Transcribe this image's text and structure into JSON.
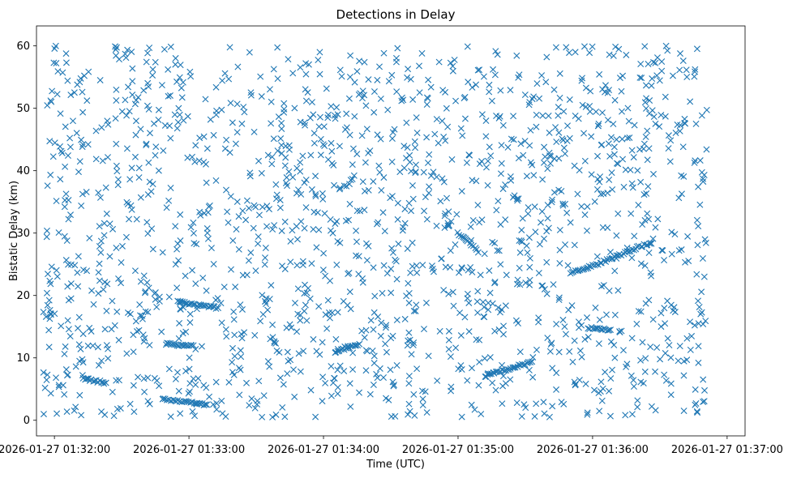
{
  "chart_data": {
    "type": "scatter",
    "title": "Detections in Delay",
    "xlabel": "Time (UTC)",
    "ylabel": "Bistatic Delay (km)",
    "marker": "x",
    "color": "#1f77b4",
    "grid": false,
    "legend": "none",
    "xlim": [
      "2026-01-27 01:31:52",
      "2026-01-27 01:37:08"
    ],
    "ylim": [
      -2.5,
      63.2
    ],
    "xticks": [
      "2026-01-27 01:32:00",
      "2026-01-27 01:33:00",
      "2026-01-27 01:34:00",
      "2026-01-27 01:35:00",
      "2026-01-27 01:36:00",
      "2026-01-27 01:37:00"
    ],
    "yticks": [
      0,
      10,
      20,
      30,
      40,
      50,
      60
    ],
    "observed_time_range": [
      "2026-01-27 01:31:55",
      "2026-01-27 01:36:51"
    ],
    "observed_delay_range": [
      0.5,
      60
    ],
    "tracks": [
      {
        "points": [
          [
            "2026-01-27 01:32:48",
            3.4
          ],
          [
            "2026-01-27 01:32:52",
            3.2
          ],
          [
            "2026-01-27 01:32:56",
            3.0
          ],
          [
            "2026-01-27 01:32:59",
            2.9
          ],
          [
            "2026-01-27 01:33:03",
            2.7
          ],
          [
            "2026-01-27 01:33:06",
            2.6
          ],
          [
            "2026-01-27 01:33:08",
            2.5
          ]
        ]
      },
      {
        "points": [
          [
            "2026-01-27 01:32:55",
            19.0
          ],
          [
            "2026-01-27 01:33:00",
            18.7
          ],
          [
            "2026-01-27 01:33:05",
            18.4
          ],
          [
            "2026-01-27 01:33:10",
            18.2
          ],
          [
            "2026-01-27 01:33:13",
            18.0
          ]
        ]
      },
      {
        "points": [
          [
            "2026-01-27 01:32:50",
            12.3
          ],
          [
            "2026-01-27 01:32:55",
            12.0
          ],
          [
            "2026-01-27 01:33:00",
            11.9
          ],
          [
            "2026-01-27 01:33:02",
            12.0
          ]
        ]
      },
      {
        "points": [
          [
            "2026-01-27 01:32:13",
            6.7
          ],
          [
            "2026-01-27 01:32:18",
            6.3
          ],
          [
            "2026-01-27 01:32:23",
            6.0
          ]
        ]
      },
      {
        "points": [
          [
            "2026-01-27 01:34:05",
            11.0
          ],
          [
            "2026-01-27 01:34:10",
            11.5
          ],
          [
            "2026-01-27 01:34:16",
            12.2
          ]
        ]
      },
      {
        "points": [
          [
            "2026-01-27 01:35:12",
            7.0
          ],
          [
            "2026-01-27 01:35:17",
            7.7
          ],
          [
            "2026-01-27 01:35:22",
            8.2
          ],
          [
            "2026-01-27 01:35:28",
            8.8
          ],
          [
            "2026-01-27 01:35:33",
            9.4
          ]
        ]
      },
      {
        "points": [
          [
            "2026-01-27 01:35:50",
            23.5
          ],
          [
            "2026-01-27 01:35:57",
            24.4
          ],
          [
            "2026-01-27 01:36:05",
            25.4
          ],
          [
            "2026-01-27 01:36:13",
            26.6
          ],
          [
            "2026-01-27 01:36:20",
            27.7
          ],
          [
            "2026-01-27 01:36:26",
            28.4
          ]
        ]
      },
      {
        "points": [
          [
            "2026-01-27 01:35:00",
            30.0
          ],
          [
            "2026-01-27 01:35:02",
            29.4
          ],
          [
            "2026-01-27 01:35:06",
            28.1
          ],
          [
            "2026-01-27 01:35:09",
            26.9
          ]
        ]
      },
      {
        "points": [
          [
            "2026-01-27 01:35:58",
            14.8
          ],
          [
            "2026-01-27 01:36:03",
            14.6
          ],
          [
            "2026-01-27 01:36:08",
            14.5
          ]
        ]
      }
    ]
  }
}
